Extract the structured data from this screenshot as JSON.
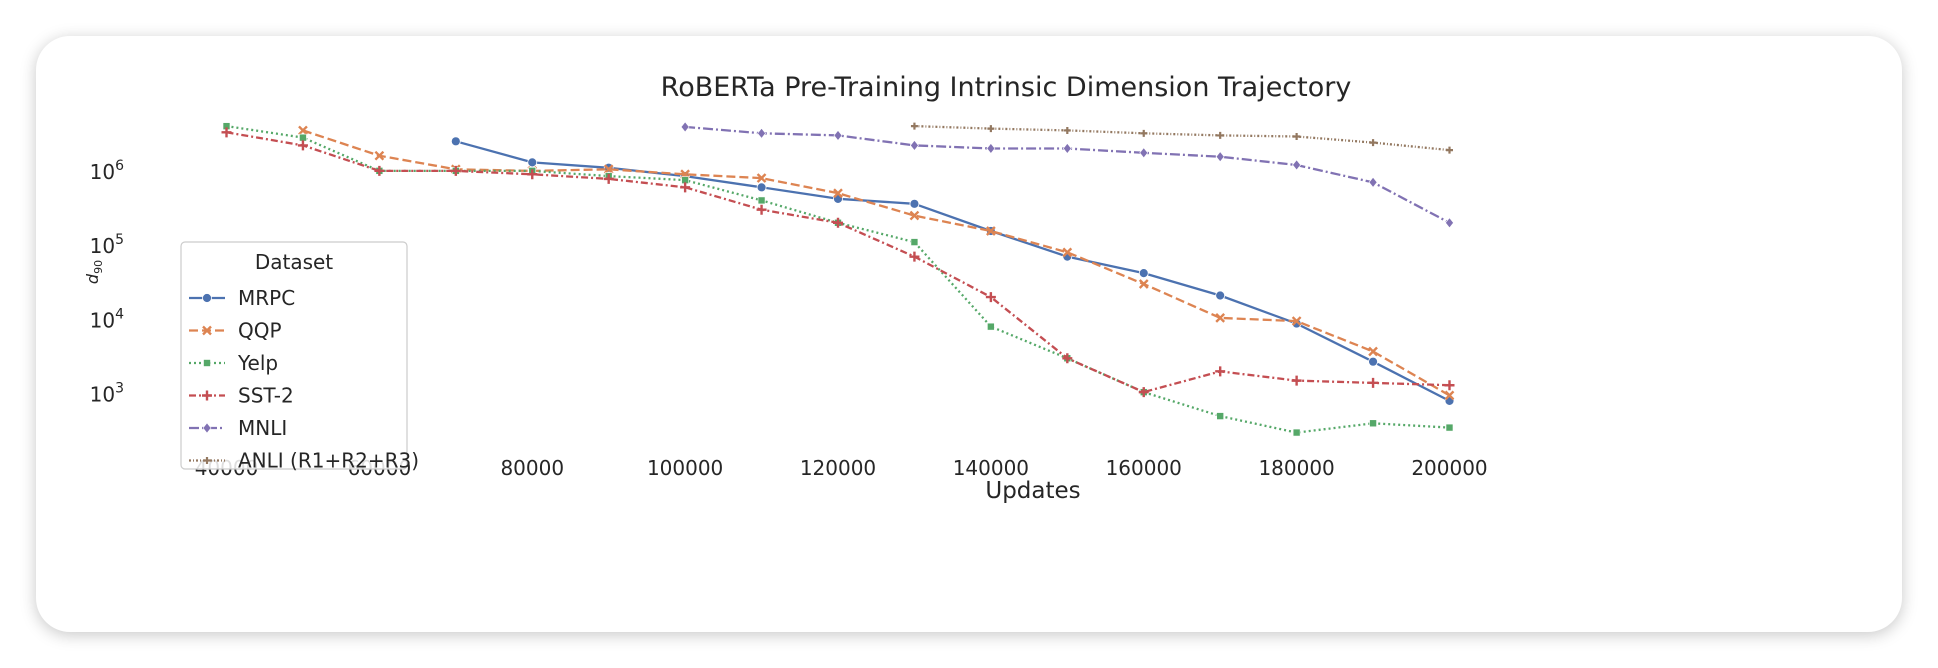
{
  "chart_data": {
    "type": "line",
    "title": "RoBERTa Pre-Training Intrinsic Dimension Trajectory",
    "xlabel": "Updates",
    "ylabel": "d",
    "ylabel_subscript": "90",
    "yscale": "log",
    "xlim": [
      33000,
      207000
    ],
    "ylim_log10": [
      2.35,
      6.9
    ],
    "x_ticks": [
      40000,
      60000,
      80000,
      100000,
      120000,
      140000,
      160000,
      180000,
      200000
    ],
    "y_ticks": [
      {
        "exp": 3,
        "base": "10",
        "power": "3"
      },
      {
        "exp": 4,
        "base": "10",
        "power": "4"
      },
      {
        "exp": 5,
        "base": "10",
        "power": "5"
      },
      {
        "exp": 6,
        "base": "10",
        "power": "6"
      }
    ],
    "legend": {
      "title": "Dataset",
      "placement": "lower-left"
    },
    "series": [
      {
        "name": "MRPC",
        "color": "#4c72b0",
        "dash": "",
        "marker": "circle",
        "x": [
          70000,
          80000,
          90000,
          100000,
          110000,
          120000,
          130000,
          140000,
          150000,
          160000,
          170000,
          180000,
          190000,
          200000
        ],
        "y": [
          2500000,
          1300000,
          1100000,
          850000,
          600000,
          420000,
          360000,
          155000,
          70000,
          42000,
          21000,
          8800,
          2700,
          800
        ]
      },
      {
        "name": "QQP",
        "color": "#dd8452",
        "dash": "9,4",
        "marker": "x",
        "x": [
          50000,
          60000,
          70000,
          80000,
          90000,
          100000,
          110000,
          120000,
          130000,
          140000,
          150000,
          160000,
          170000,
          180000,
          190000,
          200000
        ],
        "y": [
          3500000,
          1600000,
          1050000,
          1000000,
          1050000,
          900000,
          800000,
          500000,
          250000,
          155000,
          80000,
          30000,
          10500,
          9500,
          3700,
          950
        ]
      },
      {
        "name": "Yelp",
        "color": "#55a868",
        "dash": "2,3",
        "marker": "square",
        "x": [
          40000,
          50000,
          60000,
          70000,
          80000,
          90000,
          100000,
          110000,
          120000,
          130000,
          140000,
          150000,
          160000,
          170000,
          180000,
          190000,
          200000
        ],
        "y": [
          4000000,
          2800000,
          1000000,
          1000000,
          1000000,
          850000,
          750000,
          400000,
          200000,
          110000,
          8000,
          3000,
          1050,
          500,
          300,
          400,
          350
        ]
      },
      {
        "name": "SST-2",
        "color": "#c44e52",
        "dash": "7,3,2,3",
        "marker": "plus",
        "x": [
          40000,
          50000,
          60000,
          70000,
          80000,
          90000,
          100000,
          110000,
          120000,
          130000,
          140000,
          150000,
          160000,
          170000,
          180000,
          190000,
          200000
        ],
        "y": [
          3300000,
          2200000,
          1000000,
          1000000,
          900000,
          780000,
          600000,
          300000,
          200000,
          70000,
          20000,
          3000,
          1050,
          2000,
          1500,
          1400,
          1300
        ]
      },
      {
        "name": "MNLI",
        "color": "#8172b3",
        "dash": "10,3,2,3",
        "marker": "diamond",
        "x": [
          100000,
          110000,
          120000,
          130000,
          140000,
          150000,
          160000,
          170000,
          180000,
          190000,
          200000
        ],
        "y": [
          3900000,
          3200000,
          3000000,
          2200000,
          2000000,
          2000000,
          1750000,
          1550000,
          1200000,
          700000,
          200000
        ]
      },
      {
        "name": "ANLI (R1+R2+R3)",
        "color": "#937860",
        "dash": "2,2,1,2",
        "marker": "small-plus",
        "x": [
          130000,
          140000,
          150000,
          160000,
          170000,
          180000,
          190000,
          200000
        ],
        "y": [
          4000000,
          3700000,
          3500000,
          3200000,
          3000000,
          2900000,
          2400000,
          1900000
        ]
      }
    ]
  }
}
